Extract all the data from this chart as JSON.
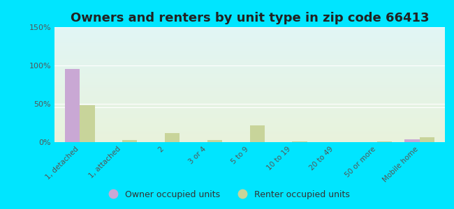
{
  "title": "Owners and renters by unit type in zip code 66413",
  "categories": [
    "1, detached",
    "1, attached",
    "2",
    "3 or 4",
    "5 to 9",
    "10 to 19",
    "20 to 49",
    "50 or more",
    "Mobile home"
  ],
  "owner_values": [
    95,
    0,
    0,
    0,
    0,
    0,
    0,
    0,
    4
  ],
  "renter_values": [
    48,
    3,
    12,
    3,
    22,
    1,
    0,
    1,
    6
  ],
  "owner_color": "#c9a8d4",
  "renter_color": "#c8d49a",
  "outer_bg": "#00e5ff",
  "ylim": [
    0,
    150
  ],
  "yticks": [
    0,
    50,
    100,
    150
  ],
  "ytick_labels": [
    "0%",
    "50%",
    "100%",
    "150%"
  ],
  "bar_width": 0.35,
  "title_fontsize": 13,
  "legend_labels": [
    "Owner occupied units",
    "Renter occupied units"
  ]
}
